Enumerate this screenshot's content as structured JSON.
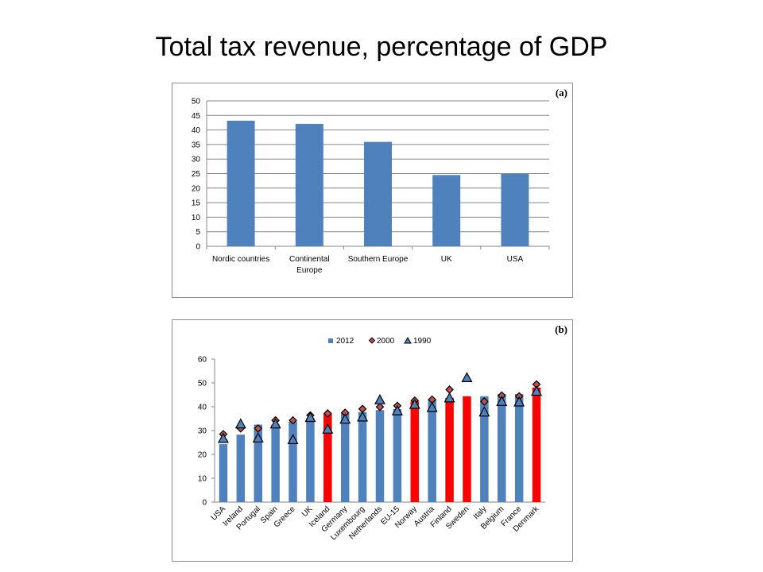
{
  "slide": {
    "title": "Total tax revenue, percentage of GDP"
  },
  "chart_data": [
    {
      "panel": "(a)",
      "type": "bar",
      "categories": [
        [
          "Nordic countries"
        ],
        [
          "Continental",
          "Europe"
        ],
        [
          "Southern Europe"
        ],
        [
          "UK"
        ],
        [
          "USA"
        ]
      ],
      "values": [
        43.2,
        42.1,
        35.9,
        24.5,
        25.0
      ],
      "ylim": [
        0,
        50
      ],
      "yticks": [
        0,
        5,
        10,
        15,
        20,
        25,
        30,
        35,
        40,
        45,
        50
      ],
      "grid": true,
      "colors": {
        "bar": "#4f81bd"
      }
    },
    {
      "panel": "(b)",
      "type": "bar",
      "categories": [
        "USA",
        "Ireland",
        "Portugal",
        "Spain",
        "Greece",
        "UK",
        "Iceland",
        "Germany",
        "Luxembourg",
        "Netherlands",
        "EU-15",
        "Norway",
        "Austria",
        "Finland",
        "Sweden",
        "Italy",
        "Belgium",
        "France",
        "Denmark"
      ],
      "series": [
        {
          "name": "2012",
          "kind": "bar",
          "values": [
            24.3,
            28.3,
            32.5,
            32.5,
            33.8,
            35.2,
            37.2,
            37.6,
            37.8,
            38.6,
            39.0,
            42.2,
            42.9,
            43.7,
            44.4,
            44.4,
            45.3,
            45.3,
            48.1
          ],
          "highlight": [
            6,
            11,
            13,
            14,
            18
          ]
        },
        {
          "name": "2000",
          "kind": "diamond",
          "values": [
            28.5,
            30.9,
            30.9,
            34.3,
            34.3,
            36.4,
            37.2,
            37.5,
            39.1,
            39.9,
            40.4,
            42.6,
            43.0,
            47.2,
            null,
            42.2,
            44.7,
            44.4,
            49.4
          ]
        },
        {
          "name": "1990",
          "kind": "triangle",
          "values": [
            26.7,
            32.8,
            26.9,
            32.8,
            26.2,
            35.5,
            30.6,
            34.8,
            35.7,
            42.9,
            38.3,
            41.0,
            39.7,
            43.7,
            52.2,
            37.8,
            42.2,
            42.0,
            46.5
          ]
        }
      ],
      "ylim": [
        0,
        60
      ],
      "yticks": [
        0,
        10,
        20,
        30,
        40,
        50,
        60
      ],
      "grid": false,
      "legend": "top-center",
      "colors": {
        "bar": "#4f81bd",
        "highlight": "#ff0000",
        "diamond_fill": "#c0504d",
        "diamond_edge": "#000000",
        "triangle_fill": "#4f81bd",
        "triangle_edge": "#000000",
        "axis": "#868686",
        "grid": "#868686"
      }
    }
  ]
}
